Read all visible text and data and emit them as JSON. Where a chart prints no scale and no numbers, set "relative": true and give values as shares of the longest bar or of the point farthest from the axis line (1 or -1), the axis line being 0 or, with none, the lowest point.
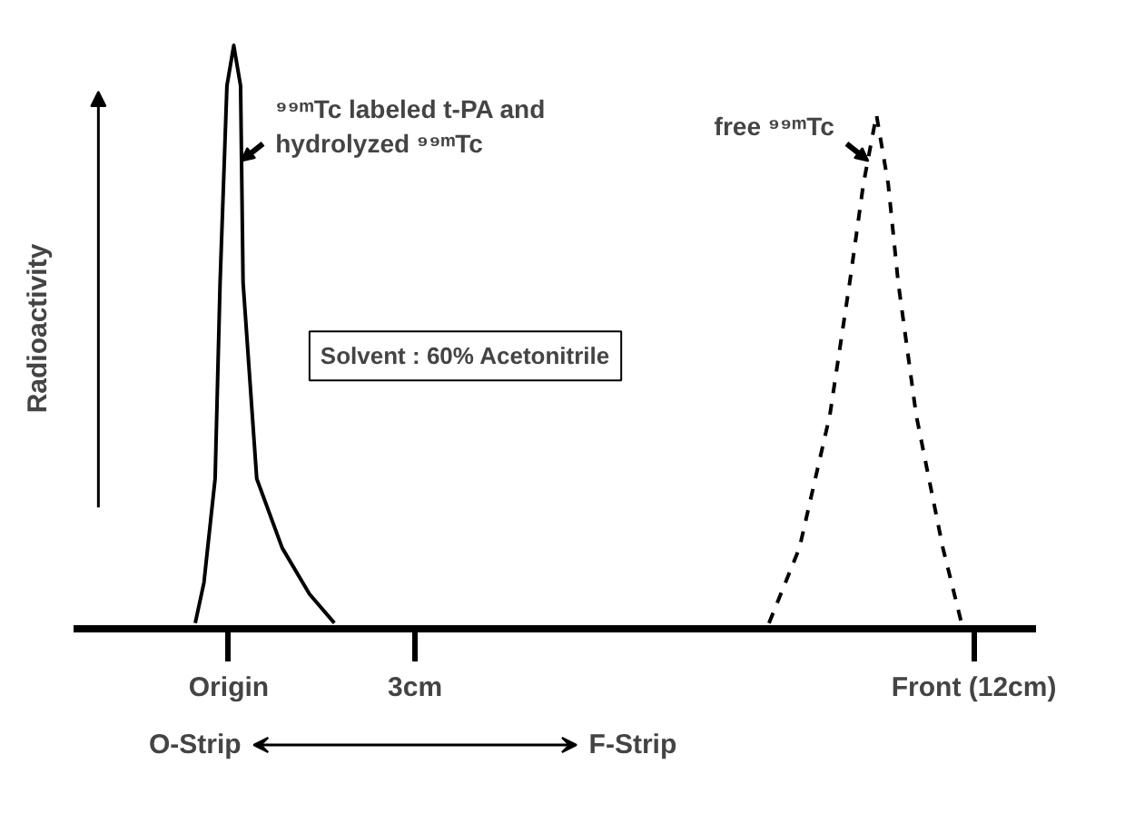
{
  "chart_data": {
    "type": "line",
    "relative": true,
    "ylabel": "Radioactivity",
    "xlim": [
      -2.5,
      13
    ],
    "xticks": [
      {
        "value": 0,
        "label": "Origin"
      },
      {
        "value": 3,
        "label": "3cm"
      },
      {
        "value": 12,
        "label": "Front (12cm)"
      }
    ],
    "x": [
      -0.54,
      -0.4,
      -0.22,
      -0.14,
      -0.03,
      0.08,
      0.19,
      0.23,
      0.45,
      0.86,
      1.3,
      1.7
    ],
    "series": [
      {
        "color": "#000000",
        "line_style": "solid",
        "values": [
          0,
          0.07,
          0.25,
          0.59,
          0.93,
          1,
          0.93,
          0.59,
          0.25,
          0.13,
          0.05,
          0
        ]
      },
      {
        "color": "#000000",
        "line_style": "dashed",
        "x": [
          8.7,
          9.19,
          9.68,
          10.0,
          10.22,
          10.43,
          10.62,
          10.78,
          11.07,
          11.5,
          11.8
        ],
        "values": [
          0,
          0.13,
          0.36,
          0.59,
          0.76,
          0.88,
          0.76,
          0.59,
          0.36,
          0.13,
          0
        ]
      }
    ],
    "annotations": [
      {
        "text": "⁹⁹ᵐTc labeled t-PA and\nhydrolyzed ⁹⁹ᵐTc",
        "x": 0.2,
        "y": 0.8
      },
      {
        "text": "free ⁹⁹ᵐTc",
        "x": 10.3,
        "y": 0.8
      },
      "Solvent : 60% Acetonitrile",
      "O-Strip",
      "F-Strip"
    ]
  }
}
